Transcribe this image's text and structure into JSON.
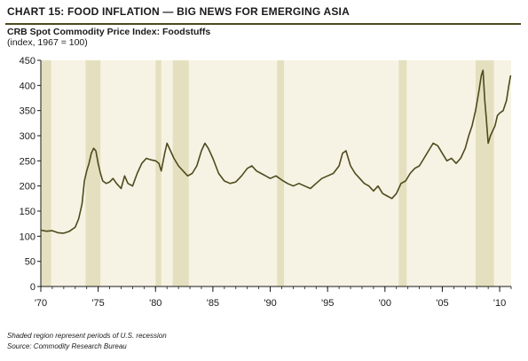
{
  "header": {
    "title": "CHART 15: FOOD INFLATION — BIG NEWS FOR EMERGING ASIA",
    "subtitle": "CRB Spot Commodity Price Index: Foodstuffs",
    "note": "(index, 1967 = 100)"
  },
  "footer": {
    "line1": "Shaded region represent periods of U.S. recession",
    "line2": "Source: Commodity Research Bureau"
  },
  "colors": {
    "line": "#4e4a1e",
    "plot_background": "#f6f3e4",
    "recession_band": "#e4e0bf",
    "rule": "#4e4a1e"
  },
  "chart_data": {
    "type": "line",
    "title": "CRB Spot Commodity Price Index: Foodstuffs",
    "ylabel": "(index, 1967 = 100)",
    "xlim": [
      1970,
      2011
    ],
    "ylim": [
      0,
      450
    ],
    "yticks": [
      0,
      50,
      100,
      150,
      200,
      250,
      300,
      350,
      400,
      450
    ],
    "xticks": [
      {
        "value": 1970,
        "label": "'70"
      },
      {
        "value": 1975,
        "label": "'75"
      },
      {
        "value": 1980,
        "label": "'80"
      },
      {
        "value": 1985,
        "label": "'85"
      },
      {
        "value": 1990,
        "label": "'90"
      },
      {
        "value": 1995,
        "label": "'95"
      },
      {
        "value": 2000,
        "label": "'00"
      },
      {
        "value": 2005,
        "label": "'05"
      },
      {
        "value": 2010,
        "label": "'10"
      }
    ],
    "grid": false,
    "recessions": [
      [
        1970.0,
        1970.9
      ],
      [
        1973.9,
        1975.2
      ],
      [
        1980.0,
        1980.5
      ],
      [
        1981.5,
        1982.9
      ],
      [
        1990.6,
        1991.2
      ],
      [
        2001.2,
        2001.9
      ],
      [
        2007.9,
        2009.5
      ]
    ],
    "series": [
      {
        "x": [
          1970.0,
          1970.5,
          1971.0,
          1971.5,
          1972.0,
          1972.5,
          1973.0,
          1973.3,
          1973.6,
          1973.8,
          1974.0,
          1974.2,
          1974.4,
          1974.6,
          1974.8,
          1975.0,
          1975.2,
          1975.4,
          1975.7,
          1976.0,
          1976.3,
          1976.6,
          1977.0,
          1977.3,
          1977.6,
          1978.0,
          1978.4,
          1978.8,
          1979.2,
          1979.6,
          1980.0,
          1980.3,
          1980.5,
          1980.8,
          1981.0,
          1981.3,
          1981.6,
          1982.0,
          1982.4,
          1982.8,
          1983.2,
          1983.6,
          1984.0,
          1984.3,
          1984.6,
          1985.0,
          1985.5,
          1986.0,
          1986.5,
          1987.0,
          1987.5,
          1988.0,
          1988.4,
          1988.8,
          1989.2,
          1989.6,
          1990.0,
          1990.5,
          1991.0,
          1991.5,
          1992.0,
          1992.5,
          1993.0,
          1993.5,
          1994.0,
          1994.5,
          1995.0,
          1995.5,
          1996.0,
          1996.3,
          1996.6,
          1997.0,
          1997.4,
          1997.8,
          1998.2,
          1998.6,
          1999.0,
          1999.4,
          1999.8,
          2000.2,
          2000.6,
          2001.0,
          2001.4,
          2001.8,
          2002.2,
          2002.6,
          2003.0,
          2003.4,
          2003.8,
          2004.2,
          2004.6,
          2005.0,
          2005.4,
          2005.8,
          2006.2,
          2006.6,
          2007.0,
          2007.3,
          2007.6,
          2007.9,
          2008.2,
          2008.4,
          2008.55,
          2008.7,
          2008.85,
          2009.0,
          2009.2,
          2009.4,
          2009.6,
          2009.8,
          2010.0,
          2010.3,
          2010.6,
          2010.8,
          2010.95
        ],
        "y": [
          112,
          110,
          111,
          107,
          106,
          110,
          118,
          135,
          165,
          210,
          230,
          245,
          265,
          275,
          270,
          245,
          225,
          210,
          205,
          208,
          215,
          205,
          195,
          220,
          205,
          200,
          225,
          245,
          255,
          252,
          250,
          245,
          230,
          265,
          285,
          270,
          255,
          240,
          230,
          220,
          225,
          240,
          270,
          285,
          275,
          255,
          225,
          210,
          205,
          208,
          220,
          235,
          240,
          230,
          225,
          220,
          215,
          220,
          212,
          205,
          200,
          205,
          200,
          195,
          205,
          215,
          220,
          225,
          240,
          265,
          270,
          240,
          225,
          215,
          205,
          200,
          190,
          200,
          185,
          180,
          175,
          185,
          205,
          210,
          225,
          235,
          240,
          255,
          270,
          285,
          280,
          265,
          250,
          255,
          245,
          255,
          275,
          300,
          320,
          350,
          390,
          420,
          430,
          370,
          330,
          285,
          300,
          310,
          320,
          340,
          345,
          350,
          370,
          400,
          420
        ]
      }
    ]
  }
}
